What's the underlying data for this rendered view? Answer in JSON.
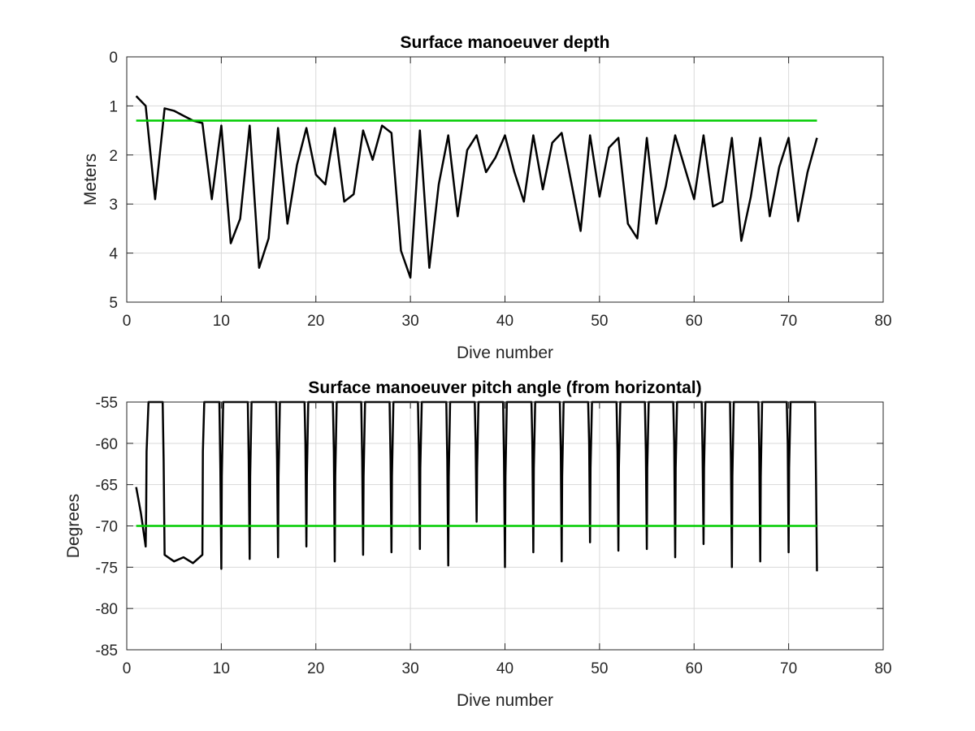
{
  "chart_data": [
    {
      "type": "line",
      "title": "Surface manoeuver depth",
      "xlabel": "Dive number",
      "ylabel": "Meters",
      "xlim": [
        0,
        80
      ],
      "ylim": [
        0,
        5
      ],
      "y_reversed": true,
      "grid": true,
      "xticks": [
        0,
        10,
        20,
        30,
        40,
        50,
        60,
        70,
        80
      ],
      "yticks": [
        0,
        1,
        2,
        3,
        4,
        5
      ],
      "xtick_labels": [
        "0",
        "10",
        "20",
        "30",
        "40",
        "50",
        "60",
        "70",
        "80"
      ],
      "ytick_labels": [
        "0",
        "1",
        "2",
        "3",
        "4",
        "5"
      ],
      "series": [
        {
          "color": "#000000",
          "x": [
            1,
            2,
            3,
            4,
            5,
            6,
            7,
            8,
            9,
            10,
            11,
            12,
            13,
            14,
            15,
            16,
            17,
            18,
            19,
            20,
            21,
            22,
            23,
            24,
            25,
            26,
            27,
            28,
            29,
            30,
            31,
            32,
            33,
            34,
            35,
            36,
            37,
            38,
            39,
            40,
            41,
            42,
            43,
            44,
            45,
            46,
            47,
            48,
            49,
            50,
            51,
            52,
            53,
            54,
            55,
            56,
            57,
            58,
            59,
            60,
            61,
            62,
            63,
            64,
            65,
            66,
            67,
            68,
            69,
            70,
            71,
            72,
            73
          ],
          "values": [
            0.8,
            1.0,
            2.9,
            1.05,
            1.1,
            1.2,
            1.3,
            1.35,
            2.9,
            1.4,
            3.8,
            3.3,
            1.4,
            4.3,
            3.7,
            1.45,
            3.4,
            2.2,
            1.45,
            2.4,
            2.6,
            1.45,
            2.95,
            2.8,
            1.5,
            2.1,
            1.4,
            1.55,
            3.95,
            4.5,
            1.5,
            4.3,
            2.6,
            1.6,
            3.25,
            1.9,
            1.6,
            2.35,
            2.05,
            1.6,
            2.35,
            2.95,
            1.6,
            2.7,
            1.75,
            1.55,
            2.55,
            3.55,
            1.6,
            2.85,
            1.85,
            1.65,
            3.4,
            3.7,
            1.65,
            3.4,
            2.65,
            1.6,
            2.25,
            2.9,
            1.6,
            3.05,
            2.95,
            1.65,
            3.75,
            2.85,
            1.65,
            3.25,
            2.25,
            1.65,
            3.35,
            2.35,
            1.65
          ]
        },
        {
          "color": "#00cc00",
          "x": [
            1,
            73
          ],
          "values": [
            1.3,
            1.3
          ]
        }
      ]
    },
    {
      "type": "line",
      "title": "Surface manoeuver pitch angle (from horizontal)",
      "xlabel": "Dive number",
      "ylabel": "Degrees",
      "xlim": [
        0,
        80
      ],
      "ylim": [
        -85,
        -55
      ],
      "grid": true,
      "xticks": [
        0,
        10,
        20,
        30,
        40,
        50,
        60,
        70,
        80
      ],
      "yticks": [
        -55,
        -60,
        -65,
        -70,
        -75,
        -80,
        -85
      ],
      "xtick_labels": [
        "0",
        "10",
        "20",
        "30",
        "40",
        "50",
        "60",
        "70",
        "80"
      ],
      "ytick_labels": [
        "-55",
        "-60",
        "-65",
        "-70",
        "-75",
        "-80",
        "-85"
      ],
      "series": [
        {
          "color": "#000000",
          "x": [
            1,
            1.5,
            2,
            2.05,
            2.1,
            2.3,
            2.5,
            3.8,
            3.9,
            4,
            5,
            6,
            7,
            8,
            8.05,
            8.2,
            9.8,
            9.9,
            10,
            10.05,
            10.2,
            12.8,
            12.9,
            13,
            13.05,
            13.2,
            15.8,
            15.9,
            16,
            16.05,
            16.2,
            18.8,
            18.9,
            19,
            19.05,
            19.2,
            21.8,
            21.9,
            22,
            22.05,
            22.2,
            24.8,
            24.9,
            25,
            25.05,
            25.2,
            27.8,
            27.9,
            28,
            28.05,
            28.2,
            30.8,
            30.9,
            31,
            31.05,
            31.2,
            33.8,
            33.9,
            34,
            34.05,
            34.2,
            36.8,
            36.9,
            37,
            37.05,
            37.2,
            39.8,
            39.9,
            40,
            40.05,
            40.2,
            42.8,
            42.9,
            43,
            43.05,
            43.2,
            45.8,
            45.9,
            46,
            46.05,
            46.2,
            48.8,
            48.9,
            49,
            49.05,
            49.2,
            51.8,
            51.9,
            52,
            52.05,
            52.2,
            54.8,
            54.9,
            55,
            55.05,
            55.2,
            57.8,
            57.9,
            58,
            58.05,
            58.2,
            60.8,
            60.9,
            61,
            61.05,
            61.2,
            63.8,
            63.9,
            64,
            64.05,
            64.2,
            66.8,
            66.9,
            67,
            67.05,
            67.2,
            69.8,
            69.9,
            70,
            70.05,
            70.2,
            72.8,
            72.9,
            73
          ],
          "values": [
            -65.3,
            -68.5,
            -72.5,
            -68,
            -61,
            -55,
            -55,
            -55,
            -62,
            -73.5,
            -74.3,
            -73.8,
            -74.5,
            -73.5,
            -61,
            -55,
            -55,
            -63,
            -75.2,
            -64,
            -55,
            -55,
            -62,
            -74,
            -64,
            -55,
            -55,
            -62,
            -73.8,
            -64,
            -55,
            -55,
            -60,
            -72.5,
            -64,
            -55,
            -55,
            -61,
            -74.3,
            -64,
            -55,
            -55,
            -62,
            -73.5,
            -64,
            -55,
            -55,
            -62,
            -73.2,
            -64,
            -55,
            -55,
            -61,
            -72.8,
            -63,
            -55,
            -55,
            -62,
            -74.8,
            -64,
            -55,
            -55,
            -60,
            -69.5,
            -63,
            -55,
            -55,
            -62,
            -75,
            -64,
            -55,
            -55,
            -60,
            -73.2,
            -63,
            -55,
            -55,
            -61,
            -74.3,
            -64,
            -55,
            -55,
            -60,
            -72,
            -63,
            -55,
            -55,
            -61,
            -73,
            -63,
            -55,
            -55,
            -61,
            -72.8,
            -63,
            -55,
            -55,
            -60,
            -73.8,
            -63,
            -55,
            -55,
            -61,
            -72.2,
            -63,
            -55,
            -55,
            -62,
            -75,
            -64,
            -55,
            -55,
            -61,
            -74.3,
            -64,
            -55,
            -55,
            -60,
            -73.2,
            -63,
            -55,
            -55,
            -65,
            -75.5
          ]
        },
        {
          "color": "#00cc00",
          "x": [
            1,
            73
          ],
          "values": [
            -70,
            -70
          ]
        }
      ]
    }
  ]
}
